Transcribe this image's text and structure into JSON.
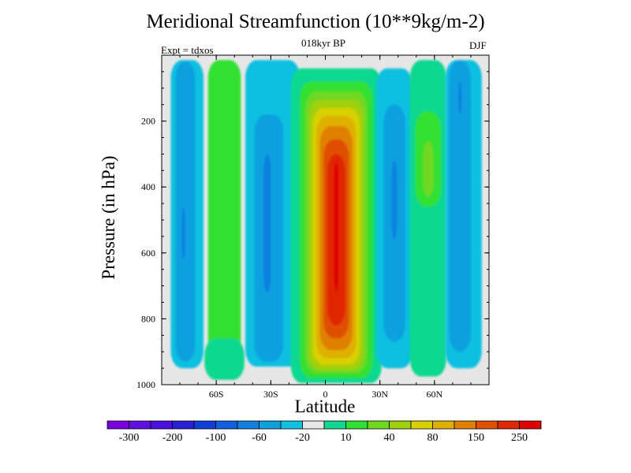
{
  "chart_data": {
    "type": "contour",
    "title": "Meridional Streamfunction (10**9kg/m-2)",
    "subtitle": "018kyr BP",
    "left_label": "Expt = tdxos",
    "right_label": "DJF",
    "xlabel": "Latitude",
    "ylabel": "Pressure (in hPa)",
    "xlim": [
      -90,
      90
    ],
    "ylim": [
      1000,
      0
    ],
    "x_ticks": [
      {
        "value": -60,
        "label": "60S"
      },
      {
        "value": -30,
        "label": "30S"
      },
      {
        "value": 0,
        "label": "0"
      },
      {
        "value": 30,
        "label": "30N"
      },
      {
        "value": 60,
        "label": "60N"
      }
    ],
    "y_ticks": [
      {
        "value": 200,
        "label": "200"
      },
      {
        "value": 400,
        "label": "400"
      },
      {
        "value": 600,
        "label": "600"
      },
      {
        "value": 800,
        "label": "800"
      },
      {
        "value": 1000,
        "label": "1000"
      }
    ],
    "background_color": "#e6e6e6",
    "colorbar": {
      "colors": [
        "#7a00e0",
        "#6010e0",
        "#4a10e0",
        "#2a20d8",
        "#1040d8",
        "#1060e0",
        "#1080e0",
        "#10a0e0",
        "#10c0e0",
        "#e6e6e6",
        "#10d890",
        "#30e030",
        "#70d820",
        "#a0d010",
        "#d8d000",
        "#e0b000",
        "#e08000",
        "#e05000",
        "#e02800",
        "#e00000"
      ],
      "labels": [
        "-300",
        "-200",
        "-100",
        "-60",
        "-20",
        "10",
        "40",
        "80",
        "150",
        "250"
      ]
    },
    "cells": [
      {
        "id": "sh-polar-cell",
        "sign": "negative",
        "lat": [
          -85,
          -67
        ],
        "p": [
          15,
          950
        ],
        "levels": [
          {
            "colorIndex": 8,
            "w": 18,
            "pt": 15,
            "pb": 950
          },
          {
            "colorIndex": 7,
            "w": 11,
            "pt": 20,
            "pb": 930,
            "dx": -1
          },
          {
            "colorIndex": 6,
            "w": 2,
            "pt": 460,
            "pb": 620,
            "dx": -2
          }
        ]
      },
      {
        "id": "sh-mid-positive",
        "sign": "positive",
        "lat": [
          -64,
          -47
        ],
        "p": [
          15,
          965
        ],
        "levels": [
          {
            "colorIndex": 11,
            "w": 18,
            "pt": 15,
            "pb": 965
          },
          {
            "colorIndex": 10,
            "w": 22,
            "pt": 860,
            "pb": 985
          }
        ]
      },
      {
        "id": "sh-ferrel-cell",
        "sign": "negative",
        "lat": [
          -46,
          -12
        ],
        "p": [
          15,
          945
        ],
        "levels": [
          {
            "colorIndex": 8,
            "w": 30,
            "pt": 15,
            "pb": 945
          },
          {
            "colorIndex": 7,
            "w": 16,
            "pt": 180,
            "pb": 930,
            "dx": -2
          },
          {
            "colorIndex": 6,
            "w": 4,
            "pt": 300,
            "pb": 720,
            "dx": -3
          }
        ]
      },
      {
        "id": "hadley-cell",
        "sign": "positive",
        "lat": [
          -14,
          26
        ],
        "p": [
          80,
          980
        ],
        "levels": [
          {
            "colorIndex": 10,
            "w": 50,
            "pt": 40,
            "pb": 995
          },
          {
            "colorIndex": 11,
            "w": 40,
            "pt": 80,
            "pb": 980
          },
          {
            "colorIndex": 12,
            "w": 34,
            "pt": 110,
            "pb": 965
          },
          {
            "colorIndex": 13,
            "w": 30,
            "pt": 135,
            "pb": 955
          },
          {
            "colorIndex": 14,
            "w": 26,
            "pt": 160,
            "pb": 940
          },
          {
            "colorIndex": 15,
            "w": 22,
            "pt": 185,
            "pb": 920
          },
          {
            "colorIndex": 16,
            "w": 18,
            "pt": 215,
            "pb": 895
          },
          {
            "colorIndex": 17,
            "w": 14,
            "pt": 255,
            "pb": 860
          },
          {
            "colorIndex": 18,
            "w": 10,
            "pt": 300,
            "pb": 820
          },
          {
            "colorIndex": 19,
            "w": 2.5,
            "pt": 320,
            "pb": 720
          }
        ]
      },
      {
        "id": "nh-ferrel-cell",
        "sign": "negative",
        "lat": [
          28,
          48
        ],
        "p": [
          15,
          950
        ],
        "levels": [
          {
            "colorIndex": 8,
            "w": 20,
            "pt": 40,
            "pb": 950
          },
          {
            "colorIndex": 7,
            "w": 12,
            "pt": 150,
            "pb": 870
          },
          {
            "colorIndex": 6,
            "w": 3,
            "pt": 320,
            "pb": 560
          }
        ]
      },
      {
        "id": "nh-mid-positive",
        "sign": "positive",
        "lat": [
          47,
          66
        ],
        "p": [
          15,
          975
        ],
        "levels": [
          {
            "colorIndex": 10,
            "w": 20,
            "pt": 15,
            "pb": 975
          },
          {
            "colorIndex": 11,
            "w": 14,
            "pt": 170,
            "pb": 460
          },
          {
            "colorIndex": 12,
            "w": 6,
            "pt": 260,
            "pb": 430
          }
        ]
      },
      {
        "id": "nh-polar-cell",
        "sign": "negative",
        "lat": [
          66,
          86
        ],
        "p": [
          15,
          950
        ],
        "levels": [
          {
            "colorIndex": 8,
            "w": 20,
            "pt": 15,
            "pb": 950
          },
          {
            "colorIndex": 7,
            "w": 12,
            "pt": 15,
            "pb": 900,
            "dx": -2
          },
          {
            "colorIndex": 6,
            "w": 2,
            "pt": 80,
            "pb": 180,
            "dx": -2
          }
        ]
      }
    ]
  }
}
